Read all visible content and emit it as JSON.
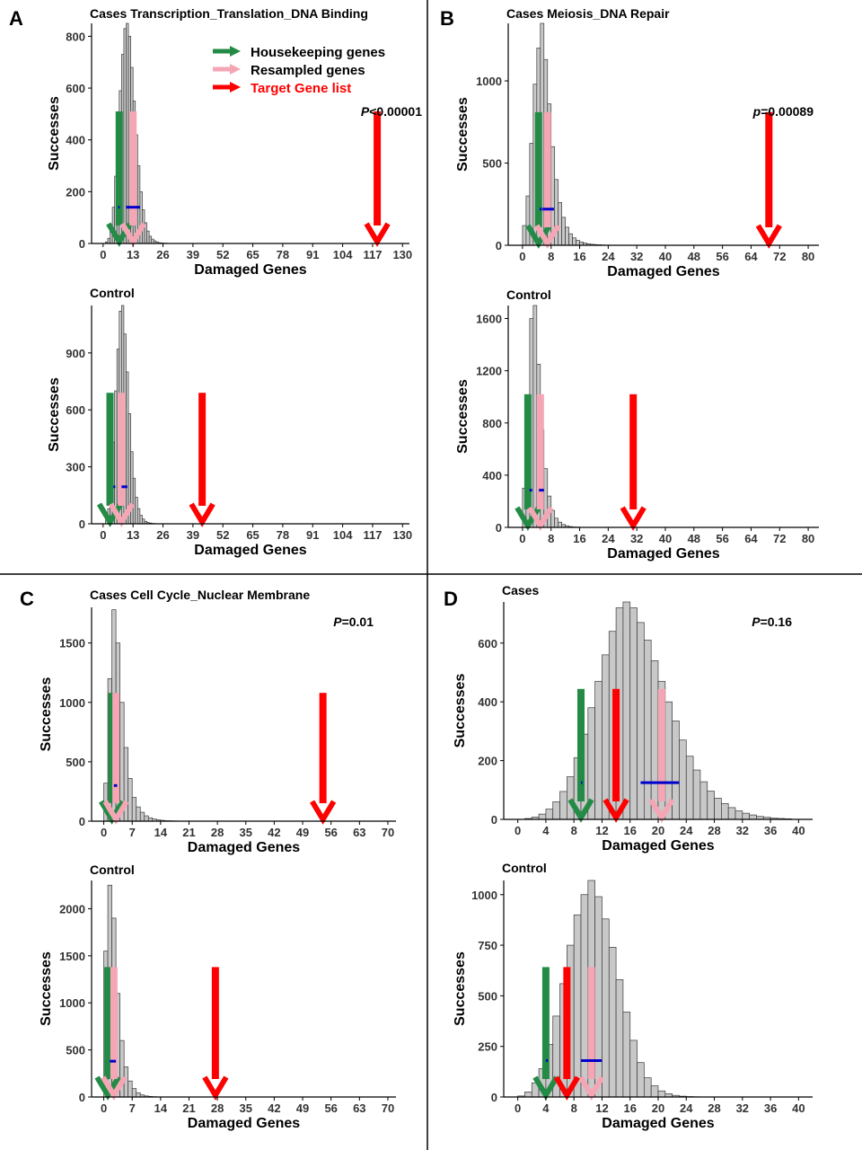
{
  "colors": {
    "bar_fill": "#c8c8c8",
    "bar_stroke": "#3a3a3a",
    "housekeeping": "#238b45",
    "resampled": "#f4a6b4",
    "target": "#ff0000",
    "mean_line": "#0000cc"
  },
  "legend": {
    "items": [
      {
        "label": "Housekeeping genes",
        "color": "#238b45"
      },
      {
        "label": "Resampled genes",
        "color": "#f4a6b4"
      },
      {
        "label": "Target Gene list",
        "color": "#ff0000"
      }
    ]
  },
  "panels": [
    {
      "letter": "A"
    },
    {
      "letter": "B"
    },
    {
      "letter": "C"
    },
    {
      "letter": "D"
    }
  ],
  "chart_data": [
    {
      "type": "bar",
      "panel": "A",
      "title": "Cases Transcription_Translation_DNA Binding",
      "xlabel": "Damaged Genes",
      "ylabel": "Successes",
      "xlim": [
        -5,
        133
      ],
      "ylim": [
        0,
        850
      ],
      "xticks": [
        "0",
        "13",
        "26",
        "39",
        "52",
        "65",
        "78",
        "91",
        "104",
        "117",
        "130"
      ],
      "yticks": [
        "0",
        "200",
        "400",
        "600",
        "800"
      ],
      "p_prefix": "P",
      "p_rest": "<0.00001",
      "bins": {
        "start": 1,
        "width": 1,
        "counts": [
          6,
          20,
          60,
          140,
          260,
          420,
          590,
          730,
          830,
          850,
          800,
          680,
          550,
          420,
          300,
          200,
          130,
          80,
          48,
          28,
          17,
          10,
          6,
          3,
          2,
          1,
          1
        ]
      },
      "arrows": {
        "housekeeping": 7,
        "resampled": 13,
        "target": 119
      },
      "mean_segments": [
        {
          "x1": 6.5,
          "x2": 7.2,
          "y": 140
        },
        {
          "x1": 10,
          "x2": 16,
          "y": 140
        }
      ]
    },
    {
      "type": "bar",
      "panel": "A",
      "title": "Control",
      "xlabel": "Damaged Genes",
      "ylabel": "Successes",
      "xlim": [
        -5,
        133
      ],
      "ylim": [
        0,
        1150
      ],
      "xticks": [
        "0",
        "13",
        "26",
        "39",
        "52",
        "65",
        "78",
        "91",
        "104",
        "117",
        "130"
      ],
      "yticks": [
        "0",
        "300",
        "600",
        "900"
      ],
      "p_prefix": "",
      "p_rest": "",
      "bins": {
        "start": 1,
        "width": 1,
        "counts": [
          20,
          80,
          220,
          430,
          700,
          920,
          1120,
          1150,
          1000,
          800,
          580,
          380,
          240,
          140,
          80,
          45,
          25,
          13,
          7,
          4,
          2,
          1
        ]
      },
      "arrows": {
        "housekeeping": 3,
        "resampled": 8,
        "target": 43
      },
      "mean_segments": [
        {
          "x1": 4.5,
          "x2": 5.3,
          "y": 195
        },
        {
          "x1": 8,
          "x2": 10.5,
          "y": 195
        }
      ]
    },
    {
      "type": "bar",
      "panel": "B",
      "title": "Cases Meiosis_DNA Repair",
      "xlabel": "Damaged Genes",
      "ylabel": "Successes",
      "xlim": [
        -4,
        83
      ],
      "ylim": [
        0,
        1350
      ],
      "xticks": [
        "0",
        "8",
        "16",
        "24",
        "32",
        "40",
        "48",
        "56",
        "64",
        "72",
        "80"
      ],
      "yticks": [
        "0",
        "500",
        "1000"
      ],
      "p_prefix": "p",
      "p_rest": "=0.00089",
      "bins": {
        "start": 0,
        "width": 1,
        "counts": [
          120,
          300,
          620,
          980,
          1200,
          1350,
          1130,
          860,
          600,
          400,
          260,
          170,
          110,
          70,
          45,
          30,
          20,
          14,
          9,
          6,
          4,
          3,
          2,
          1,
          1
        ]
      },
      "arrows": {
        "housekeeping": 4.5,
        "resampled": 7,
        "target": 69
      },
      "mean_segments": [
        {
          "x1": 4.8,
          "x2": 5.4,
          "y": 220
        },
        {
          "x1": 5.6,
          "x2": 8.8,
          "y": 220
        }
      ]
    },
    {
      "type": "bar",
      "panel": "B",
      "title": "Control",
      "xlabel": "Damaged Genes",
      "ylabel": "Successes",
      "xlim": [
        -4,
        83
      ],
      "ylim": [
        0,
        1700
      ],
      "xticks": [
        "0",
        "8",
        "16",
        "24",
        "32",
        "40",
        "48",
        "56",
        "64",
        "72",
        "80"
      ],
      "yticks": [
        "0",
        "400",
        "800",
        "1200",
        "1600"
      ],
      "p_prefix": "",
      "p_rest": "",
      "bins": {
        "start": 0,
        "width": 1,
        "counts": [
          300,
          900,
          1600,
          1700,
          1250,
          750,
          450,
          240,
          130,
          70,
          40,
          22,
          12,
          6,
          3,
          2,
          1
        ]
      },
      "arrows": {
        "housekeeping": 1.5,
        "resampled": 5,
        "target": 31
      },
      "mean_segments": [
        {
          "x1": 2,
          "x2": 2.7,
          "y": 285
        },
        {
          "x1": 4.6,
          "x2": 6,
          "y": 285
        }
      ]
    },
    {
      "type": "bar",
      "panel": "C",
      "title": "Cases Cell Cycle_Nuclear Membrane",
      "xlabel": "Damaged Genes",
      "ylabel": "Successes",
      "xlim": [
        -3,
        72
      ],
      "ylim": [
        0,
        1800
      ],
      "xticks": [
        "0",
        "7",
        "14",
        "21",
        "28",
        "35",
        "42",
        "49",
        "56",
        "63",
        "70"
      ],
      "yticks": [
        "0",
        "500",
        "1000",
        "1500"
      ],
      "p_prefix": "P",
      "p_rest": "=0.01",
      "bins": {
        "start": 0,
        "width": 1,
        "counts": [
          320,
          1200,
          1780,
          1500,
          1000,
          620,
          360,
          200,
          120,
          75,
          45,
          28,
          18,
          11,
          7,
          4,
          3,
          2,
          1
        ]
      },
      "arrows": {
        "housekeeping": 2,
        "resampled": 3,
        "target": 54
      },
      "mean_segments": [
        {
          "x1": 2.5,
          "x2": 3.3,
          "y": 300
        }
      ]
    },
    {
      "type": "bar",
      "panel": "C",
      "title": "Control",
      "xlabel": "Damaged Genes",
      "ylabel": "Successes",
      "xlim": [
        -3,
        72
      ],
      "ylim": [
        0,
        2300
      ],
      "xticks": [
        "0",
        "7",
        "14",
        "21",
        "28",
        "35",
        "42",
        "49",
        "56",
        "63",
        "70"
      ],
      "yticks": [
        "0",
        "500",
        "1000",
        "1500",
        "2000"
      ],
      "p_prefix": "",
      "p_rest": "",
      "bins": {
        "start": 0,
        "width": 1,
        "counts": [
          1550,
          2250,
          1900,
          1100,
          600,
          320,
          170,
          90,
          45,
          22,
          11,
          6,
          3,
          1
        ]
      },
      "arrows": {
        "housekeeping": 1,
        "resampled": 2.5,
        "target": 27.5
      },
      "mean_segments": [
        {
          "x1": 1.5,
          "x2": 3,
          "y": 380
        }
      ]
    },
    {
      "type": "bar",
      "panel": "D",
      "title": "Cases",
      "xlabel": "Damaged Genes",
      "ylabel": "Successes",
      "xlim": [
        -2,
        42
      ],
      "ylim": [
        0,
        740
      ],
      "xticks": [
        "0",
        "4",
        "8",
        "12",
        "16",
        "20",
        "24",
        "28",
        "32",
        "36",
        "40"
      ],
      "yticks": [
        "0",
        "200",
        "400",
        "600"
      ],
      "p_prefix": "P",
      "p_rest": "=0.16",
      "bins": {
        "start": 1,
        "width": 1,
        "counts": [
          3,
          8,
          18,
          35,
          60,
          95,
          145,
          210,
          290,
          380,
          470,
          560,
          640,
          720,
          740,
          720,
          670,
          610,
          540,
          470,
          400,
          335,
          270,
          215,
          168,
          128,
          96,
          72,
          54,
          40,
          29,
          21,
          15,
          10,
          7,
          4,
          3,
          2
        ]
      },
      "arrows": {
        "housekeeping": 9,
        "resampled": 20.5,
        "target": 14
      },
      "mean_segments": [
        {
          "x1": 9,
          "x2": 9.2,
          "y": 125
        },
        {
          "x1": 17.5,
          "x2": 23,
          "y": 125
        }
      ]
    },
    {
      "type": "bar",
      "panel": "D",
      "title": "Control",
      "xlabel": "Damaged Genes",
      "ylabel": "Successes",
      "xlim": [
        -2,
        42
      ],
      "ylim": [
        0,
        1070
      ],
      "xticks": [
        "0",
        "4",
        "8",
        "12",
        "16",
        "20",
        "24",
        "28",
        "32",
        "36",
        "40"
      ],
      "yticks": [
        "0",
        "250",
        "500",
        "750",
        "1000"
      ],
      "p_prefix": "",
      "p_rest": "",
      "bins": {
        "start": 0,
        "width": 1,
        "counts": [
          5,
          25,
          70,
          140,
          260,
          400,
          560,
          750,
          900,
          1000,
          1070,
          990,
          880,
          740,
          580,
          420,
          280,
          170,
          95,
          55,
          30,
          16,
          8,
          4,
          2,
          1
        ]
      },
      "arrows": {
        "housekeeping": 4,
        "resampled": 10.5,
        "target": 7
      },
      "mean_segments": [
        {
          "x1": 4,
          "x2": 4.3,
          "y": 180
        },
        {
          "x1": 9,
          "x2": 12,
          "y": 180
        }
      ]
    }
  ]
}
